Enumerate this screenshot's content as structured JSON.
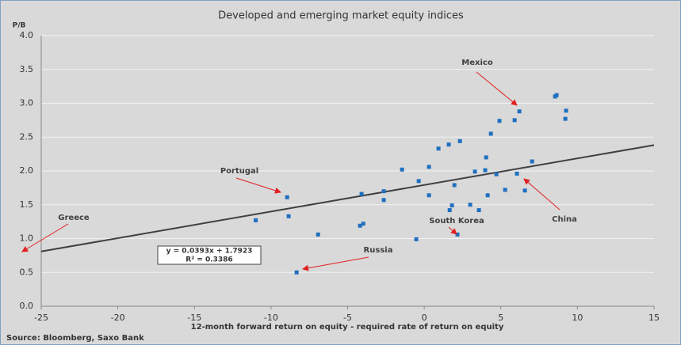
{
  "chart_data": {
    "type": "scatter",
    "title": "Developed and emerging market equity indices",
    "y_label": "P/B",
    "x_label": "12-month  forward return on equity - required rate of return on equity",
    "source": "Source: Bloomberg, Saxo Bank",
    "xlim": [
      -25,
      15
    ],
    "xticks": [
      -25,
      -20,
      -15,
      -10,
      -5,
      0,
      5,
      10,
      15
    ],
    "ylim": [
      0,
      4
    ],
    "yticks": [
      {
        "value": 0,
        "label": "0.0"
      },
      {
        "value": 0.5,
        "label": "0.5"
      },
      {
        "value": 1,
        "label": "1.0"
      },
      {
        "value": 1.5,
        "label": "1.5"
      },
      {
        "value": 2,
        "label": "2.0"
      },
      {
        "value": 2.5,
        "label": "2.5"
      },
      {
        "value": 3,
        "label": "3.0"
      },
      {
        "value": 3.5,
        "label": "3.5"
      },
      {
        "value": 4,
        "label": "4.0"
      }
    ],
    "grid": true,
    "color": "#1f6fc0",
    "x": [
      -11.0,
      -8.95,
      -8.85,
      -6.93,
      -8.33,
      -4.09,
      -4.19,
      -3.98,
      -2.64,
      -2.64,
      -1.45,
      -0.52,
      -0.36,
      0.31,
      0.31,
      0.93,
      1.6,
      1.97,
      1.81,
      1.66,
      2.17,
      2.33,
      3.0,
      3.31,
      3.57,
      3.98,
      4.04,
      4.14,
      4.35,
      4.71,
      4.91,
      5.28,
      5.9,
      6.05,
      6.21,
      6.57,
      7.04,
      8.54,
      8.64,
      9.26,
      9.21
    ],
    "values": [
      1.27,
      1.61,
      1.33,
      1.06,
      0.5,
      1.66,
      1.19,
      1.22,
      1.7,
      1.57,
      2.02,
      0.99,
      1.85,
      2.06,
      1.64,
      2.33,
      2.39,
      1.79,
      1.49,
      1.42,
      1.06,
      2.44,
      1.5,
      1.99,
      1.42,
      2.01,
      2.2,
      1.64,
      2.55,
      1.95,
      2.74,
      1.72,
      2.75,
      1.96,
      2.88,
      1.71,
      2.14,
      3.1,
      3.12,
      2.89,
      2.77
    ],
    "trendline": {
      "slope": 0.0393,
      "intercept": 1.7923,
      "color": "#404040",
      "label": "y = 0.0393x  + 1.7923",
      "r2_label": "R² = 0.3386"
    },
    "annotations": [
      "Mexico",
      "Portugal",
      "Greece",
      "China",
      "South  Korea",
      "Russia"
    ]
  }
}
